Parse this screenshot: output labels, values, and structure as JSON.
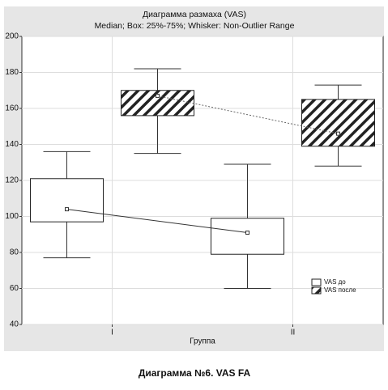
{
  "chart_data": {
    "type": "box",
    "title": "Диаграмма размаха (VAS)",
    "subtitle": "Median; Box: 25%-75%; Whisker: Non-Outlier Range",
    "x_label": "Группа",
    "categories": [
      "I",
      "II"
    ],
    "ylim": [
      40,
      200
    ],
    "yticks": [
      40,
      60,
      80,
      100,
      120,
      140,
      160,
      180,
      200
    ],
    "grid": true,
    "legend": "lower right",
    "series": [
      {
        "name": "VAS до",
        "color": "#ffffff",
        "pattern": "none",
        "line_style": "solid",
        "whisker_low": [
          77,
          60
        ],
        "q1": [
          97,
          79
        ],
        "median": [
          104,
          91
        ],
        "q3": [
          121,
          99
        ],
        "whisker_high": [
          136,
          129
        ]
      },
      {
        "name": "VAS после",
        "color": "#ffffff",
        "pattern": "hatch",
        "line_style": "dotted",
        "whisker_low": [
          135,
          128
        ],
        "q1": [
          156,
          139
        ],
        "median": [
          167,
          146
        ],
        "q3": [
          170,
          165
        ],
        "whisker_high": [
          182,
          173
        ]
      }
    ],
    "caption": "Диаграмма №6. VAS FA"
  }
}
